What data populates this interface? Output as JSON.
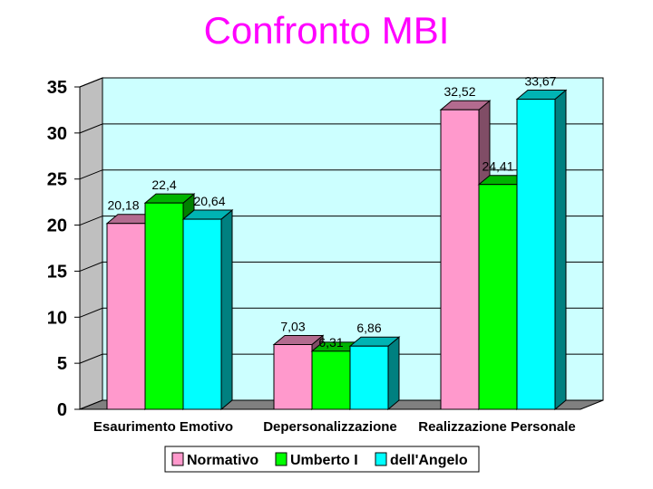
{
  "chart_data": {
    "type": "bar",
    "title": "Confronto MBI",
    "categories": [
      "Esaurimento Emotivo",
      "Depersonalizzazione",
      "Realizzazione Personale"
    ],
    "series": [
      {
        "name": "Normativo",
        "values": [
          20.18,
          7.03,
          32.52
        ],
        "color": "#ff99cc"
      },
      {
        "name": "Umberto I",
        "values": [
          22.4,
          6.31,
          24.41
        ],
        "color": "#00ff00"
      },
      {
        "name": "dell'Angelo",
        "values": [
          20.64,
          6.86,
          33.67
        ],
        "color": "#00ffff"
      }
    ],
    "data_labels": [
      [
        "20,18",
        "7,03",
        "32,52"
      ],
      [
        "22,4",
        "6,31",
        "24,41"
      ],
      [
        "20,64",
        "6,86",
        "33,67"
      ]
    ],
    "yticks": [
      "0",
      "5",
      "10",
      "15",
      "20",
      "25",
      "30",
      "35"
    ],
    "ylim": [
      0,
      35
    ],
    "grid": true,
    "legend": "bottom",
    "xlabel": "",
    "ylabel": ""
  }
}
